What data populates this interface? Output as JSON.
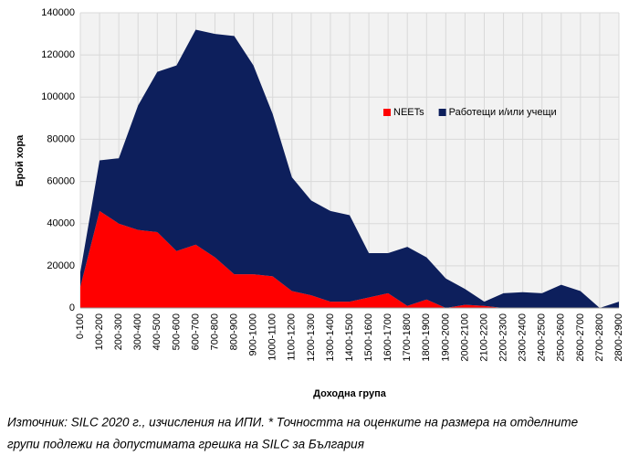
{
  "chart_data": {
    "type": "stacked_area",
    "x_label": "Доходна група",
    "y_label": "Брой хора",
    "notes": [
      "Източник: SILC 2020 г., изчисления на ИПИ. * Точността на оценките на размера на отделните",
      "групи подлежи на допустимата грешка на SILC за България"
    ],
    "categories": [
      "0-100",
      "100-200",
      "200-300",
      "300-400",
      "400-500",
      "500-600",
      "600-700",
      "700-800",
      "800-900",
      "900-1000",
      "1000-1100",
      "1100-1200",
      "1200-1300",
      "1300-1400",
      "1400-1500",
      "1500-1600",
      "1600-1700",
      "1700-1800",
      "1800-1900",
      "1900-2000",
      "2000-2100",
      "2100-2200",
      "2200-2300",
      "2300-2400",
      "2400-2500",
      "2500-2600",
      "2600-2700",
      "2700-2800",
      "2800-2900"
    ],
    "series": [
      {
        "name": "NEETs",
        "color": "#ff0000",
        "values": [
          10000,
          46000,
          40000,
          37000,
          36000,
          27000,
          30000,
          24000,
          16000,
          16000,
          15000,
          8000,
          6000,
          3000,
          3000,
          5000,
          7000,
          1000,
          4000,
          0,
          1500,
          1000,
          0,
          0,
          0,
          0,
          0,
          0,
          0
        ]
      },
      {
        "name": "Работещи и/или учещи",
        "color": "#0d1f5c",
        "values": [
          7000,
          24000,
          31000,
          59000,
          76000,
          88000,
          102000,
          106000,
          113000,
          99000,
          77000,
          54000,
          45000,
          43000,
          41000,
          21000,
          19000,
          28000,
          20000,
          14000,
          7500,
          2000,
          7000,
          7500,
          7000,
          11000,
          8000,
          0,
          3000
        ]
      }
    ],
    "ylim": [
      0,
      140000
    ],
    "yticks": [
      0,
      20000,
      40000,
      60000,
      80000,
      100000,
      120000,
      140000
    ],
    "grid": true,
    "legend_position": "upper-right"
  }
}
